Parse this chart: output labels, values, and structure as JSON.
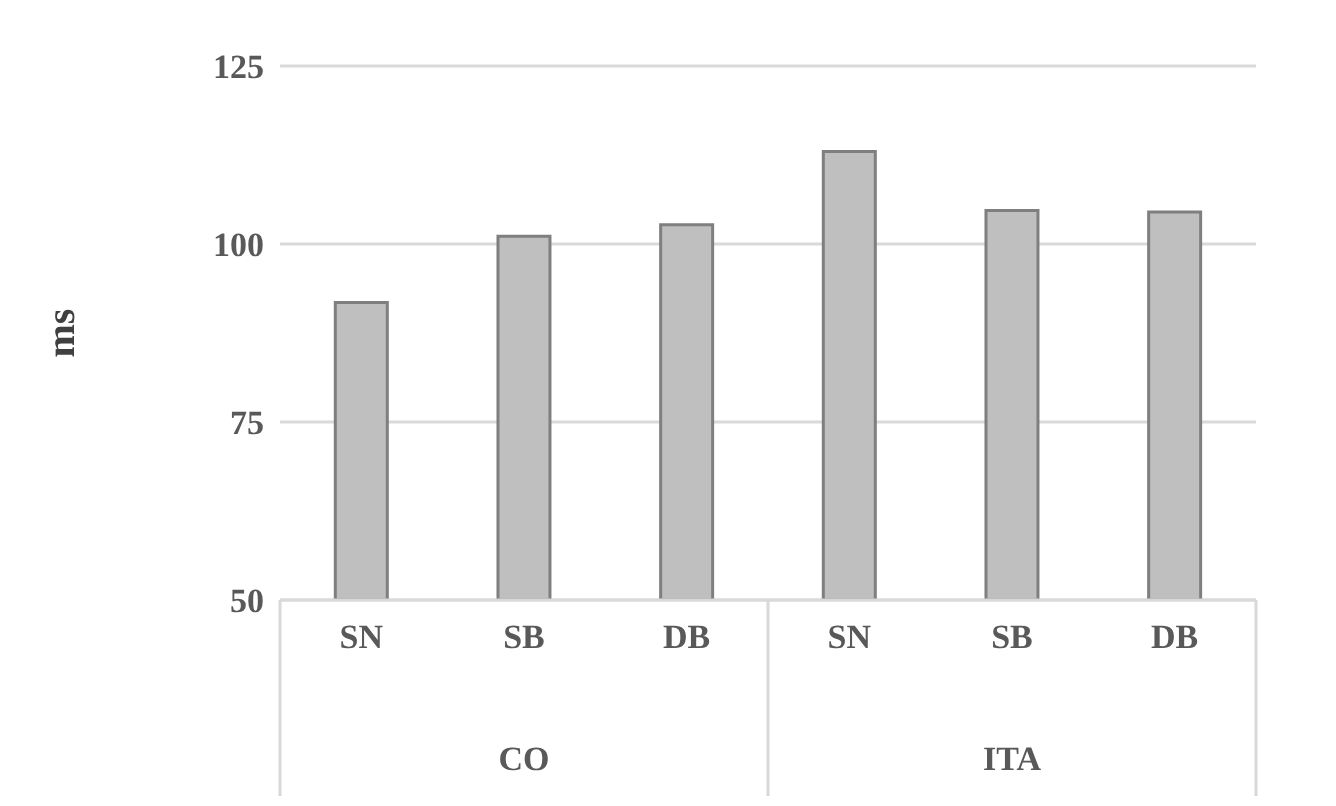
{
  "chart_data": {
    "type": "bar",
    "ylabel": "ms",
    "categories": [
      "SN",
      "SB",
      "DB",
      "SN",
      "SB",
      "DB"
    ],
    "values": [
      91.8,
      101.1,
      102.7,
      113.0,
      104.7,
      104.5
    ],
    "color": "#bfbfbf",
    "ylim": [
      50,
      125
    ],
    "yticks": [
      50,
      75,
      100,
      125
    ],
    "grid": "y",
    "annotations": [
      "CO",
      "ITA"
    ]
  }
}
